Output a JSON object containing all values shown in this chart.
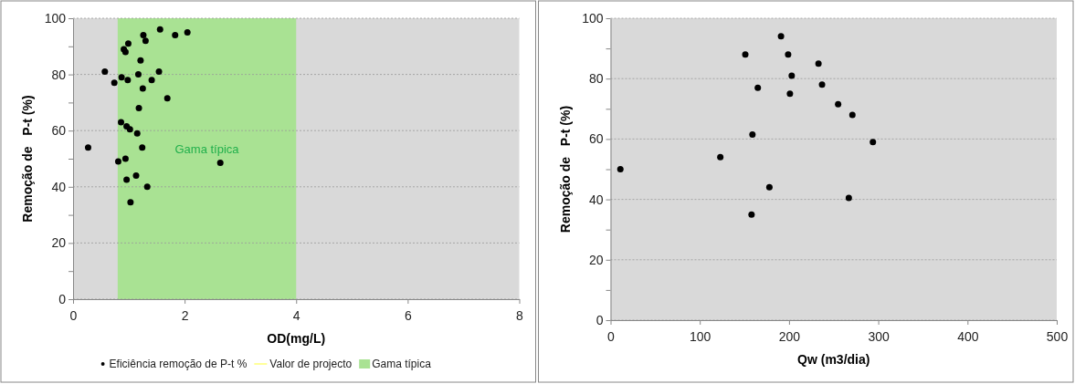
{
  "chart_data": [
    {
      "type": "scatter",
      "xlabel": "OD(mg/L)",
      "ylabel": "Remoção de   P-t (%)",
      "xlim": [
        0,
        8
      ],
      "xticks": [
        0,
        2,
        4,
        6,
        8
      ],
      "ylim": [
        0,
        100
      ],
      "yticks": [
        0,
        {
          "value": 10,
          "label": null
        },
        20,
        {
          "value": 30,
          "label": null
        },
        40,
        {
          "value": 50,
          "label": null
        },
        60,
        {
          "value": 70,
          "label": null
        },
        80,
        {
          "value": 90,
          "label": null
        },
        100
      ],
      "grid": "y",
      "legend": "bottom",
      "marker": "circle",
      "bands": [
        {
          "axis": "x",
          "from": 0.8,
          "to": 4,
          "label": "Gama típica",
          "color": "#a9e293"
        }
      ],
      "series": [
        {
          "name": "Eficiência remoção de P-t %",
          "color": "#000000",
          "x": [
            0.27,
            0.57,
            0.74,
            0.87,
            0.98,
            0.91,
            0.94,
            0.99,
            1.21,
            1.17,
            1.26,
            1.3,
            1.56,
            1.83,
            2.05,
            1.54,
            1.41,
            1.25,
            1.69,
            1.18,
            0.86,
            0.96,
            1.02,
            1.15,
            1.24,
            0.81,
            0.94,
            0.96,
            1.13,
            1.33,
            1.03,
            2.64
          ],
          "values": [
            54,
            81,
            77,
            79,
            78,
            89,
            88,
            91,
            85,
            80,
            94,
            92,
            96,
            94,
            95,
            81,
            78,
            75,
            71.5,
            68,
            63,
            61.5,
            60.5,
            59,
            54,
            49,
            50,
            42.5,
            44,
            40,
            34.5,
            48.5
          ]
        },
        {
          "name": "Valor de projecto",
          "type": "line",
          "color": "#ffff99"
        }
      ]
    },
    {
      "type": "scatter",
      "xlabel": "Qw (m3/dia)",
      "ylabel": "Remoção de   P-t (%)",
      "xlim": [
        0,
        500
      ],
      "xticks": [
        0,
        100,
        200,
        300,
        400,
        500
      ],
      "ylim": [
        0,
        100
      ],
      "yticks": [
        0,
        {
          "value": 10,
          "label": null
        },
        20,
        {
          "value": 30,
          "label": null
        },
        40,
        {
          "value": 50,
          "label": null
        },
        60,
        {
          "value": 70,
          "label": null
        },
        80,
        {
          "value": 90,
          "label": null
        },
        100
      ],
      "grid": "y",
      "marker": "circle",
      "series": [
        {
          "color": "#000000",
          "x": [
            11,
            123,
            151,
            159,
            158,
            165,
            191,
            199,
            203,
            201,
            178,
            233,
            237,
            255,
            271,
            267,
            294
          ],
          "values": [
            50,
            54,
            88,
            61.5,
            35,
            77,
            94,
            88,
            81,
            75,
            44,
            85,
            78,
            71.5,
            68,
            40.5,
            59
          ]
        }
      ]
    }
  ]
}
